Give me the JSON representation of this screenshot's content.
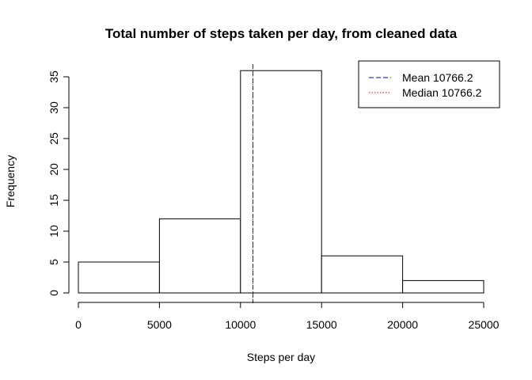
{
  "chart_data": {
    "type": "bar",
    "title": "Total number of steps taken per day, from cleaned data",
    "xlabel": "Steps per day",
    "ylabel": "Frequency",
    "bins": [
      {
        "x0": 0,
        "x1": 5000,
        "count": 5
      },
      {
        "x0": 5000,
        "x1": 10000,
        "count": 12
      },
      {
        "x0": 10000,
        "x1": 15000,
        "count": 36
      },
      {
        "x0": 15000,
        "x1": 20000,
        "count": 6
      },
      {
        "x0": 20000,
        "x1": 25000,
        "count": 2
      }
    ],
    "xlim": [
      0,
      25000
    ],
    "ylim": [
      0,
      35
    ],
    "x_ticks": [
      0,
      5000,
      10000,
      15000,
      20000,
      25000
    ],
    "y_ticks": [
      0,
      5,
      10,
      15,
      20,
      25,
      30,
      35
    ],
    "grid": false,
    "vlines": [
      {
        "name": "Mean 10766.2",
        "value": 10766.2,
        "color": "#0000cc",
        "style": "dashed"
      },
      {
        "name": "Median 10766.2",
        "value": 10766.2,
        "color": "#dd0000",
        "style": "dotted"
      }
    ],
    "legend": {
      "position": "top-right",
      "entries": [
        "Mean 10766.2",
        "Median 10766.2"
      ]
    }
  }
}
